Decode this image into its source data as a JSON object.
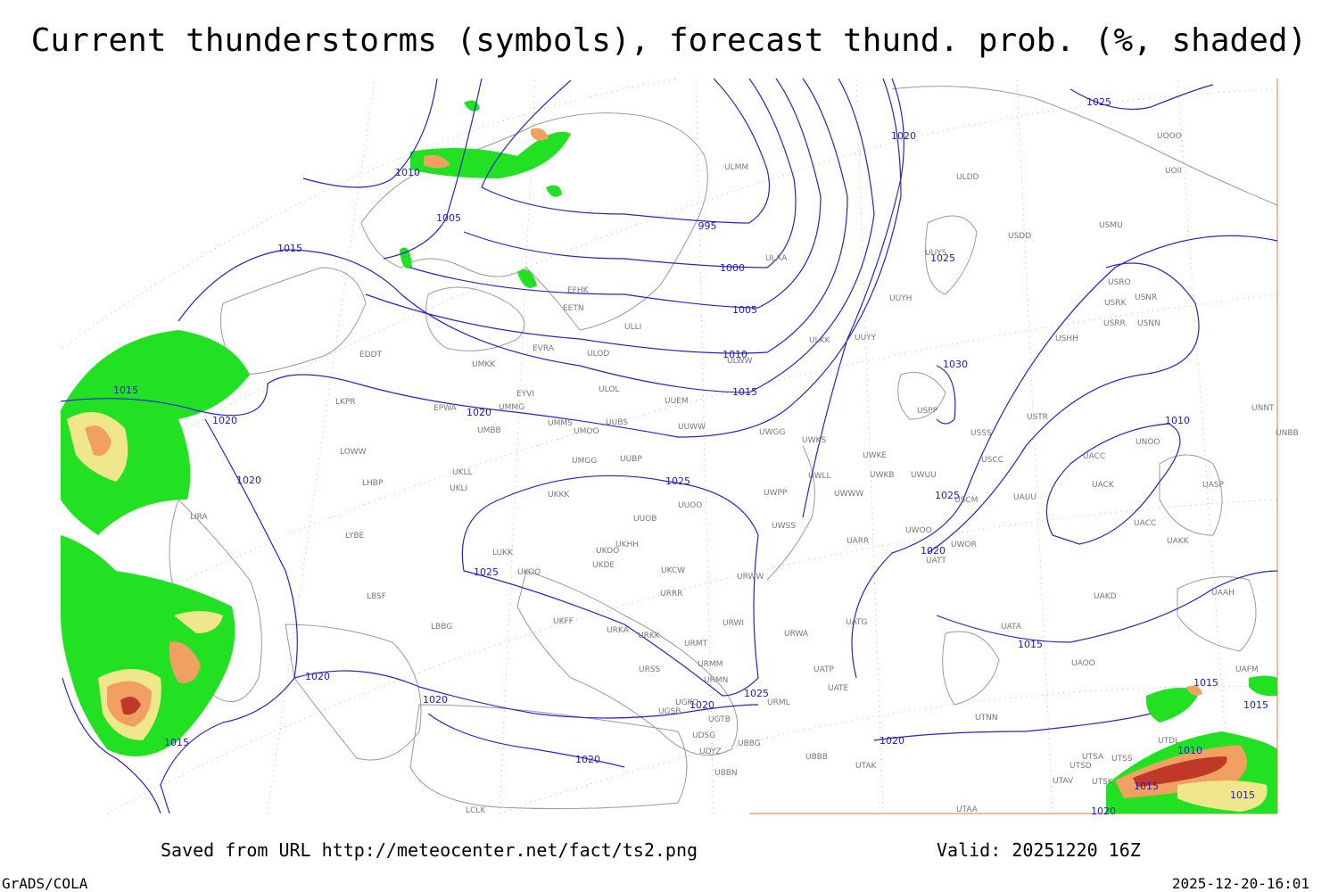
{
  "header": {
    "title": "Current thunderstorms (symbols), forecast thund. prob. (%, shaded)"
  },
  "footer": {
    "source": "Saved from URL http://meteocenter.net/fact/ts2.png",
    "valid": "Valid: 20251220 16Z",
    "software": "GrADS/COLA",
    "timestamp": "2025-12-20-16:01"
  },
  "isobar_labels": [
    1010,
    1005,
    1015,
    995,
    1000,
    1005,
    1010,
    1015,
    1015,
    1020,
    1020,
    1020,
    1025,
    1025,
    1020,
    1020,
    1020,
    1025,
    1020,
    1015,
    1020,
    1025,
    1025,
    1030,
    1010,
    1025,
    1020,
    1015,
    1015,
    1015,
    1020,
    1010,
    1015,
    1015,
    1020
  ],
  "stations": [
    "ULMM",
    "ULDD",
    "UOOO",
    "UOII",
    "USDD",
    "USMU",
    "ULAA",
    "UUYS",
    "USRO",
    "USRK",
    "USNR",
    "USRR",
    "USNN",
    "UUYH",
    "EFHK",
    "EETN",
    "ULLI",
    "ULKK",
    "UUYY",
    "USHH",
    "EVRA",
    "ULOD",
    "ULWW",
    "UMKK",
    "EDDT",
    "EYVI",
    "ULOL",
    "UUEM",
    "LKPR",
    "EPWA",
    "UMMG",
    "USPP",
    "USTR",
    "UMMS",
    "UUBS",
    "UUWW",
    "UWGG",
    "UMBB",
    "UMOO",
    "UWKS",
    "USSS",
    "UNOO",
    "UNBB",
    "UNNT",
    "LOWW",
    "UWKE",
    "UACC",
    "USCC",
    "UMGG",
    "UUBP",
    "UKLL",
    "UWKB",
    "UWUU",
    "UWLL",
    "LHBP",
    "UKLI",
    "UACK",
    "UASP",
    "UWPP",
    "UWWW",
    "UKKK",
    "USCM",
    "UAUU",
    "LIRA",
    "UUOO",
    "UUOB",
    "UWSS",
    "LYBE",
    "UARR",
    "UWOO",
    "UACC",
    "UAKK",
    "UWOR",
    "UKOO",
    "UKHH",
    "LUKK",
    "UKOO",
    "UKDE",
    "UKCW",
    "UATT",
    "URWW",
    "LBSF",
    "URRR",
    "UAKD",
    "UAAH",
    "UKFF",
    "URKA",
    "URKK",
    "URWI",
    "UATG",
    "URWA",
    "UATA",
    "URMT",
    "UAOO",
    "URMM",
    "URSS",
    "UATP",
    "URMN",
    "UATE",
    "UAFM",
    "LBBG",
    "UGKO",
    "URML",
    "UGSB",
    "UGTB",
    "UTNN",
    "UDSG",
    "UBBG",
    "UTDL",
    "UDYZ",
    "UBBB",
    "UTSA",
    "UTSS",
    "UTAK",
    "UBBN",
    "UTSD",
    "UTAV",
    "UTSK",
    "LCLK",
    "UTAA"
  ]
}
